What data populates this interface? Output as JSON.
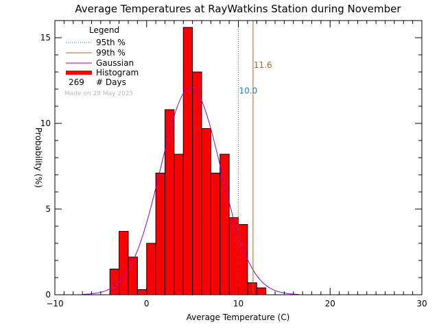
{
  "chart_data": {
    "type": "bar",
    "title": "Average Temperatures at RayWatkins Station during November",
    "xlabel": "Average Temperature (C)",
    "ylabel": "Probability   (%)",
    "xlim": [
      -10,
      30
    ],
    "ylim": [
      0,
      16
    ],
    "x_ticks": [
      -10,
      0,
      10,
      20,
      30
    ],
    "x_tick_labels": [
      "−10",
      "0",
      "10",
      "20",
      "30"
    ],
    "y_ticks": [
      0,
      5,
      10,
      15
    ],
    "y_tick_labels": [
      "0",
      "5",
      "10",
      "15"
    ],
    "histogram": {
      "bin_width": 1,
      "bin_starts": [
        -4,
        -3,
        -2,
        -1,
        0,
        1,
        2,
        3,
        4,
        5,
        6,
        7,
        8,
        9,
        10,
        11,
        12
      ],
      "values": [
        1.5,
        3.7,
        2.2,
        0.3,
        3.0,
        7.1,
        10.8,
        8.2,
        15.6,
        13.0,
        9.7,
        7.1,
        8.2,
        4.5,
        4.1,
        0.7,
        0.4
      ],
      "color": "#ff0000"
    },
    "gaussian": {
      "mean": 4.8,
      "sigma": 3.3,
      "peak": 12.1,
      "color": "#9400d3"
    },
    "percentile_95": {
      "value": 10.0,
      "label": "10.0",
      "color": "#1e7fd0"
    },
    "percentile_99": {
      "value": 11.6,
      "label": "11.6",
      "color": "#a0642a"
    },
    "legend": {
      "title": "Legend",
      "position": "top-left",
      "entries": [
        {
          "label": "95th %",
          "style": "dotted",
          "color": "#1e7fd0"
        },
        {
          "label": "99th %",
          "style": "solid",
          "color": "#a0642a"
        },
        {
          "label": "Gaussian",
          "style": "solid",
          "color": "#9400d3"
        },
        {
          "label": "Histogram",
          "style": "thick",
          "color": "#ff0000"
        }
      ],
      "days_count": "269",
      "days_label": "# Days"
    },
    "stamp": "Made on 29 May 2025"
  }
}
